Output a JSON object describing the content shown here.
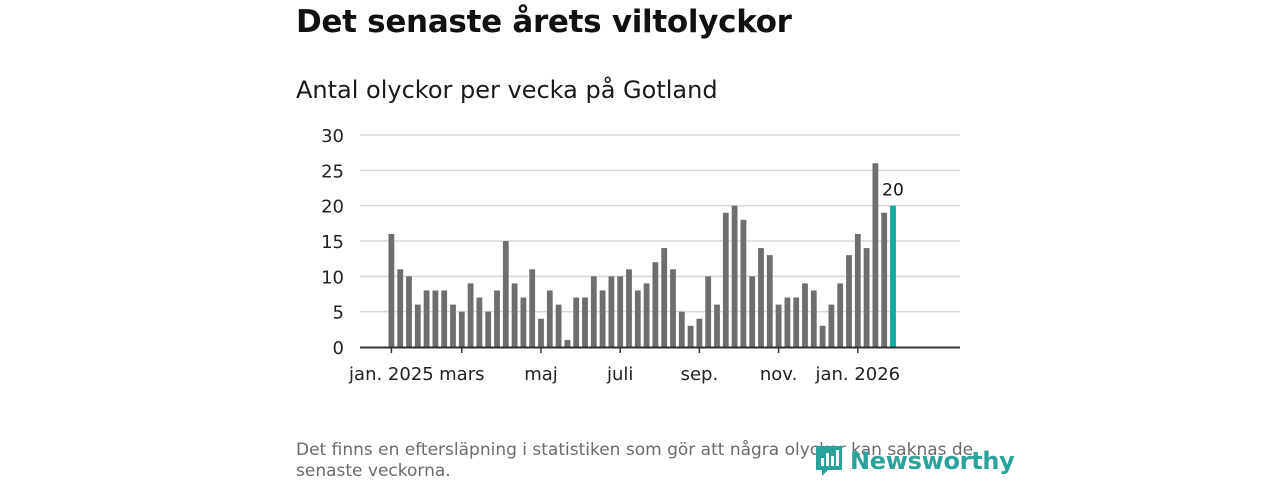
{
  "title": "Det senaste årets viltolyckor",
  "subtitle": "Antal olyckor per vecka på Gotland",
  "footnote": "Det finns en eftersläpning i statistiken som gör att några olyckor kan saknas de senaste veckorna.",
  "logo": {
    "text": "Newsworthy"
  },
  "colors": {
    "bar": "#6e6e70",
    "highlight": "#13a89e",
    "grid": "#d9d9d9",
    "axis": "#333333",
    "logo": "#2ba39a"
  },
  "chart_data": {
    "type": "bar",
    "title": "Antal olyckor per vecka på Gotland",
    "xlabel": "",
    "ylabel": "",
    "ylim": [
      0,
      30
    ],
    "yticks": [
      0,
      5,
      10,
      15,
      20,
      25,
      30
    ],
    "values": [
      16,
      11,
      10,
      6,
      8,
      8,
      8,
      6,
      5,
      9,
      7,
      5,
      8,
      15,
      9,
      7,
      11,
      4,
      8,
      6,
      1,
      7,
      7,
      10,
      8,
      10,
      10,
      11,
      8,
      9,
      12,
      14,
      11,
      5,
      3,
      4,
      10,
      6,
      19,
      20,
      18,
      10,
      14,
      13,
      6,
      7,
      7,
      9,
      8,
      3,
      6,
      9,
      13,
      16,
      14,
      26,
      19,
      20
    ],
    "highlight_index": 57,
    "highlight_label": "20",
    "x_tick_labels": [
      {
        "label": "jan. 2025",
        "index": 0
      },
      {
        "label": "mars",
        "index": 8
      },
      {
        "label": "maj",
        "index": 17
      },
      {
        "label": "juli",
        "index": 26
      },
      {
        "label": "sep.",
        "index": 35
      },
      {
        "label": "nov.",
        "index": 44
      },
      {
        "label": "jan. 2026",
        "index": 53
      }
    ]
  }
}
